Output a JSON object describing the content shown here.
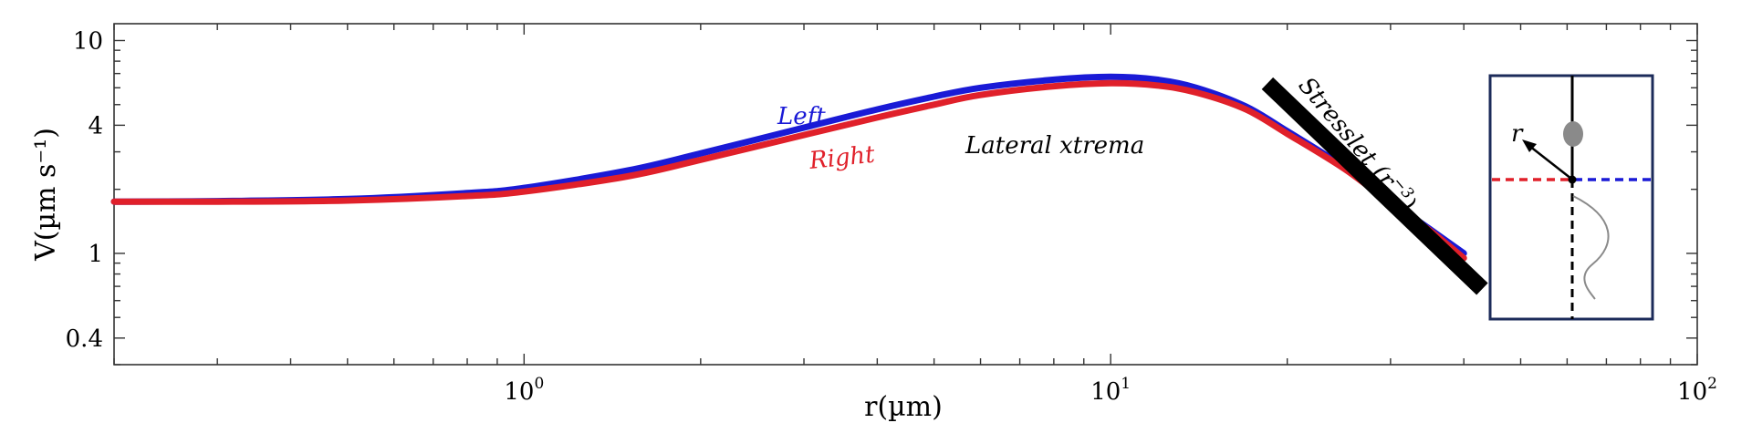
{
  "chart_data": {
    "type": "line",
    "xlabel": "r(µm)",
    "ylabel": "V(µm s⁻¹)",
    "xscale": "log",
    "yscale": "log",
    "xlim": [
      0.2,
      100
    ],
    "ylim": [
      0.3,
      12
    ],
    "xticks": [
      {
        "value": 1,
        "base": "10",
        "exp": "0"
      },
      {
        "value": 10,
        "base": "10",
        "exp": "1"
      },
      {
        "value": 100,
        "base": "10",
        "exp": "2"
      }
    ],
    "yticks": [
      {
        "value": 0.4,
        "label": "0.4"
      },
      {
        "value": 1,
        "label": "1"
      },
      {
        "value": 4,
        "label": "4"
      },
      {
        "value": 10,
        "label": "10"
      }
    ],
    "grid": false,
    "series": [
      {
        "name": "Left",
        "color": "#1a1ad6",
        "x": [
          0.2,
          0.3,
          0.5,
          0.8,
          1.0,
          1.5,
          2.0,
          3.0,
          4.0,
          5.0,
          6.0,
          8.0,
          10.0,
          12.0,
          14.0,
          17.0,
          20.0,
          25.0,
          30.0,
          35.0,
          40.0
        ],
        "y": [
          1.75,
          1.76,
          1.8,
          1.92,
          2.03,
          2.45,
          2.95,
          3.9,
          4.75,
          5.45,
          6.0,
          6.55,
          6.75,
          6.55,
          6.0,
          4.9,
          3.75,
          2.55,
          1.75,
          1.3,
          1.0
        ]
      },
      {
        "name": "Right",
        "color": "#e0202a",
        "x": [
          0.2,
          0.3,
          0.5,
          0.8,
          1.0,
          1.5,
          2.0,
          3.0,
          4.0,
          5.0,
          6.0,
          8.0,
          10.0,
          12.0,
          14.0,
          17.0,
          20.0,
          25.0,
          30.0,
          35.0,
          40.0
        ],
        "y": [
          1.75,
          1.75,
          1.77,
          1.86,
          1.95,
          2.3,
          2.75,
          3.6,
          4.35,
          5.0,
          5.55,
          6.1,
          6.3,
          6.15,
          5.7,
          4.75,
          3.65,
          2.5,
          1.72,
          1.28,
          0.95
        ]
      }
    ],
    "annotations": {
      "left_label": "Left",
      "right_label": "Right",
      "lateral_label": "Lateral xtrema",
      "stresslet_text": "Stresslet (",
      "stresslet_r": "r",
      "stresslet_exp": "−3",
      "stresslet_close": ")",
      "stresslet_line": {
        "x": [
          18.5,
          43.0
        ],
        "y": [
          6.3,
          0.68
        ]
      }
    },
    "inset": {
      "r_label": "r"
    }
  }
}
